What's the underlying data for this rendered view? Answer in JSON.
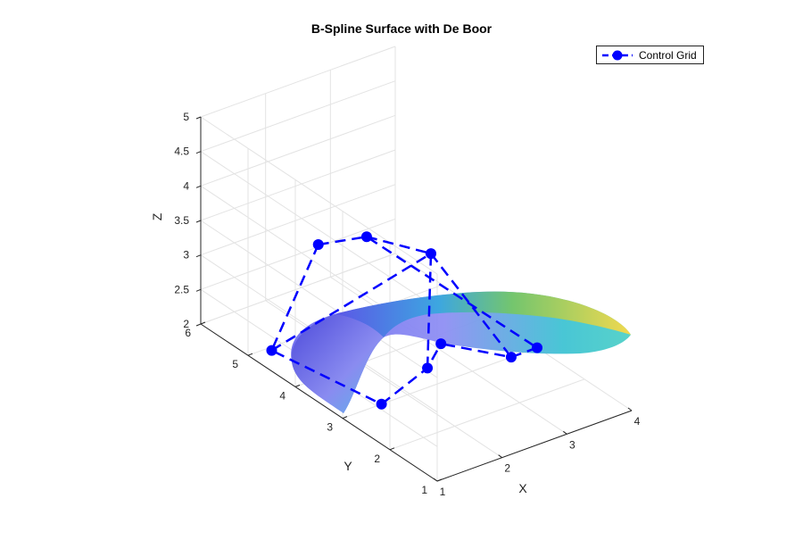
{
  "chart_data": {
    "type": "surface",
    "title": "B-Spline Surface with De Boor",
    "xlabel": "X",
    "ylabel": "Y",
    "zlabel": "Z",
    "xlim": [
      1,
      4
    ],
    "ylim": [
      1,
      6
    ],
    "zlim": [
      2,
      5
    ],
    "x_ticks": [
      "1",
      "2",
      "3",
      "4"
    ],
    "y_ticks": [
      "1",
      "2",
      "3",
      "4",
      "5",
      "6"
    ],
    "z_ticks": [
      "2",
      "2.5",
      "3",
      "3.5",
      "4",
      "4.5",
      "5"
    ],
    "grid": true,
    "legend": {
      "position": "top-right",
      "entries": [
        "Control Grid"
      ]
    },
    "colormap": "parula",
    "series": [
      {
        "name": "Control Grid",
        "kind": "line-with-markers",
        "color": "#0000ff",
        "line_style": "dashed",
        "points": [
          [
            1.5,
            4.2,
            3.8
          ],
          [
            1.0,
            4.5,
            2.3
          ],
          [
            1.6,
            3.0,
            2.0
          ],
          [
            2.1,
            4.0,
            3.8
          ],
          [
            2.8,
            3.6,
            3.5
          ],
          [
            2.6,
            3.4,
            2.0
          ],
          [
            4.0,
            3.0,
            2.0
          ],
          [
            3.6,
            3.0,
            2.0
          ],
          [
            3.1,
            3.8,
            2.0
          ]
        ],
        "grid_shape": [
          3,
          3
        ]
      }
    ]
  }
}
